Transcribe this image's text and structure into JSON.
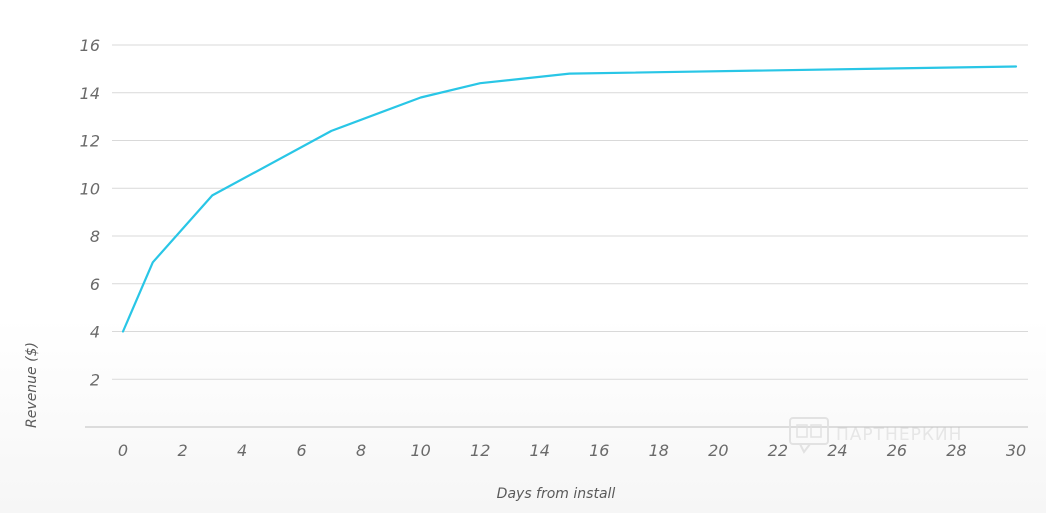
{
  "chart_data": {
    "type": "line",
    "title": "",
    "xlabel": "Days from install",
    "ylabel": "Revenue ($)",
    "xlim": [
      0,
      30
    ],
    "ylim": [
      0,
      16
    ],
    "x_ticks": [
      0,
      2,
      4,
      6,
      8,
      10,
      12,
      14,
      16,
      18,
      20,
      22,
      24,
      26,
      28,
      30
    ],
    "y_ticks": [
      2,
      4,
      6,
      8,
      10,
      12,
      14,
      16
    ],
    "grid": "horizontal",
    "legend": "none",
    "series": [
      {
        "color": "#29c6e6",
        "x": [
          0,
          1,
          3,
          7,
          10,
          12,
          15,
          30
        ],
        "y": [
          4.0,
          6.9,
          9.7,
          12.4,
          13.8,
          14.4,
          14.8,
          15.1
        ]
      }
    ]
  },
  "colors": {
    "grid": "#d9d9d9",
    "axis": "#bdbdbd",
    "line": "#29c6e6"
  },
  "watermark": {
    "text": "ПАРТНЕРКИН",
    "icon": "speech-bubble-logo-icon"
  }
}
